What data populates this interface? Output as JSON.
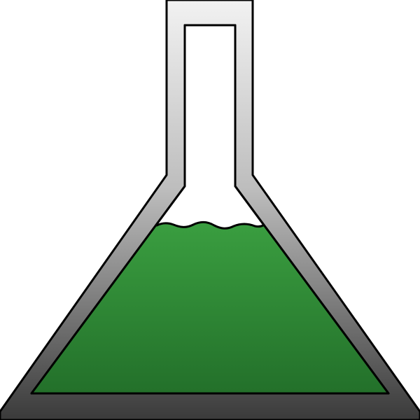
{
  "icon": {
    "name": "erlenmeyer-flask-icon",
    "colors": {
      "background": "#ffffff",
      "glass_top": "#f2f2f2",
      "glass_bottom": "#3a3a3a",
      "outline": "#000000",
      "liquid_top": "#3a9e40",
      "liquid_bottom": "#23702a",
      "interior": "#ffffff"
    }
  }
}
